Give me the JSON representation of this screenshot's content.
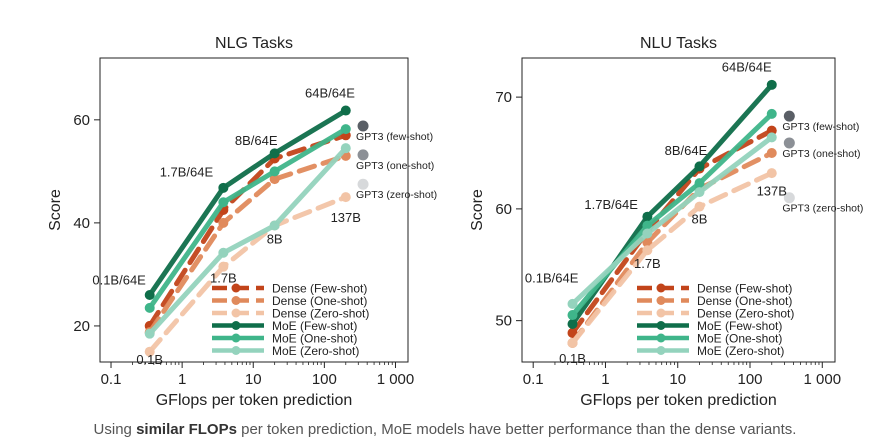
{
  "caption": {
    "prefix": "Using ",
    "bold": "similar FLOPs",
    "suffix": " per token prediction, MoE models have better performance than the dense variants."
  },
  "chart_data": [
    {
      "type": "line",
      "title": "NLG Tasks",
      "xlabel": "GFlops per token prediction",
      "ylabel": "Score",
      "xscale": "log",
      "xlim": [
        0.07,
        1500
      ],
      "ylim": [
        13,
        72
      ],
      "xticks": [
        {
          "v": 0.1,
          "label": "0.1"
        },
        {
          "v": 1,
          "label": "1"
        },
        {
          "v": 10,
          "label": "10"
        },
        {
          "v": 100,
          "label": "100"
        },
        {
          "v": 1000,
          "label": "1 000"
        }
      ],
      "yticks": [
        20,
        40,
        60
      ],
      "grid": false,
      "legend": "bottom-right",
      "series": [
        {
          "name": "Dense (Few-shot)",
          "color": "#c2441a",
          "dash": "dash",
          "x": [
            0.35,
            3.8,
            20,
            200
          ],
          "y": [
            20.0,
            42.5,
            52.5,
            57.0
          ]
        },
        {
          "name": "Dense (One-shot)",
          "color": "#e08a5c",
          "dash": "dash",
          "x": [
            0.35,
            3.8,
            20,
            200
          ],
          "y": [
            18.8,
            40.0,
            48.5,
            53.0
          ]
        },
        {
          "name": "Dense (Zero-shot)",
          "color": "#f2c4a6",
          "dash": "dash",
          "x": [
            0.35,
            3.8,
            20,
            200
          ],
          "y": [
            15.0,
            31.5,
            39.5,
            45.0
          ]
        },
        {
          "name": "MoE (Few-shot)",
          "color": "#0f6e4a",
          "dash": "solid",
          "x": [
            0.35,
            3.8,
            20,
            200
          ],
          "y": [
            26.0,
            46.8,
            53.5,
            61.8
          ]
        },
        {
          "name": "MoE (One-shot)",
          "color": "#3fb58a",
          "dash": "solid",
          "x": [
            0.35,
            3.8,
            20,
            200
          ],
          "y": [
            23.5,
            44.0,
            50.0,
            58.2
          ]
        },
        {
          "name": "MoE (Zero-shot)",
          "color": "#94d3bd",
          "dash": "solid",
          "x": [
            0.35,
            3.8,
            20,
            200
          ],
          "y": [
            18.5,
            34.2,
            39.5,
            54.5
          ]
        }
      ],
      "gpt3": [
        {
          "label": "GPT3 (few-shot)",
          "color": "#5a5f66",
          "x": 350,
          "y": 58.8
        },
        {
          "label": "GPT3 (one-shot)",
          "color": "#8c9096",
          "x": 350,
          "y": 53.2
        },
        {
          "label": "GPT3 (zero-shot)",
          "color": "#d7d9db",
          "x": 350,
          "y": 47.5
        }
      ],
      "annotations": [
        {
          "text": "64B/64E",
          "x": 120,
          "y": 64.3
        },
        {
          "text": "8B/64E",
          "x": 11,
          "y": 55.1
        },
        {
          "text": "1.7B/64E",
          "x": 1.15,
          "y": 49.0
        },
        {
          "text": "0.1B/64E",
          "x": 0.13,
          "y": 28.0
        },
        {
          "text": "137B",
          "x": 200,
          "y": 40.2
        },
        {
          "text": "8B",
          "x": 20,
          "y": 36.0
        },
        {
          "text": "1.7B",
          "x": 3.8,
          "y": 28.4
        },
        {
          "text": "0.1B",
          "x": 0.35,
          "y": 12.6
        }
      ]
    },
    {
      "type": "line",
      "title": "NLU Tasks",
      "xlabel": "GFlops per token prediction",
      "ylabel": "Score",
      "xscale": "log",
      "xlim": [
        0.07,
        1500
      ],
      "ylim": [
        46.3,
        73.5
      ],
      "xticks": [
        {
          "v": 0.1,
          "label": "0.1"
        },
        {
          "v": 1,
          "label": "1"
        },
        {
          "v": 10,
          "label": "10"
        },
        {
          "v": 100,
          "label": "100"
        },
        {
          "v": 1000,
          "label": "1 000"
        }
      ],
      "yticks": [
        50,
        60,
        70
      ],
      "grid": false,
      "legend": "bottom-right",
      "series": [
        {
          "name": "Dense (Few-shot)",
          "color": "#c2441a",
          "dash": "dash",
          "x": [
            0.35,
            3.8,
            20,
            200
          ],
          "y": [
            48.9,
            58.0,
            63.6,
            67.0
          ]
        },
        {
          "name": "Dense (One-shot)",
          "color": "#e08a5c",
          "dash": "dash",
          "x": [
            0.35,
            3.8,
            20,
            200
          ],
          "y": [
            48.0,
            57.0,
            61.8,
            65.0
          ]
        },
        {
          "name": "Dense (Zero-shot)",
          "color": "#f2c4a6",
          "dash": "dash",
          "x": [
            0.35,
            3.8,
            20,
            200
          ],
          "y": [
            48.0,
            56.3,
            60.2,
            63.2
          ]
        },
        {
          "name": "MoE (Few-shot)",
          "color": "#0f6e4a",
          "dash": "solid",
          "x": [
            0.35,
            3.8,
            20,
            200
          ],
          "y": [
            49.7,
            59.3,
            63.8,
            71.1
          ]
        },
        {
          "name": "MoE (One-shot)",
          "color": "#3fb58a",
          "dash": "solid",
          "x": [
            0.35,
            3.8,
            20,
            200
          ],
          "y": [
            50.5,
            58.5,
            62.3,
            68.5
          ]
        },
        {
          "name": "MoE (Zero-shot)",
          "color": "#94d3bd",
          "dash": "solid",
          "x": [
            0.35,
            3.8,
            20,
            200
          ],
          "y": [
            51.5,
            57.8,
            61.5,
            66.4
          ]
        }
      ],
      "gpt3": [
        {
          "label": "GPT3 (few-shot)",
          "color": "#5a5f66",
          "x": 350,
          "y": 68.3
        },
        {
          "label": "GPT3 (one-shot)",
          "color": "#8c9096",
          "x": 350,
          "y": 65.9
        },
        {
          "label": "GPT3 (zero-shot)",
          "color": "#d7d9db",
          "x": 350,
          "y": 61.0
        }
      ],
      "annotations": [
        {
          "text": "64B/64E",
          "x": 90,
          "y": 72.3
        },
        {
          "text": "8B/64E",
          "x": 13,
          "y": 64.8
        },
        {
          "text": "1.7B/64E",
          "x": 1.2,
          "y": 60.0
        },
        {
          "text": "0.1B/64E",
          "x": 0.18,
          "y": 53.4
        },
        {
          "text": "137B",
          "x": 200,
          "y": 61.2
        },
        {
          "text": "8B",
          "x": 20,
          "y": 58.7
        },
        {
          "text": "1.7B",
          "x": 3.8,
          "y": 54.7
        },
        {
          "text": "0.1B",
          "x": 0.35,
          "y": 46.2
        }
      ]
    }
  ]
}
